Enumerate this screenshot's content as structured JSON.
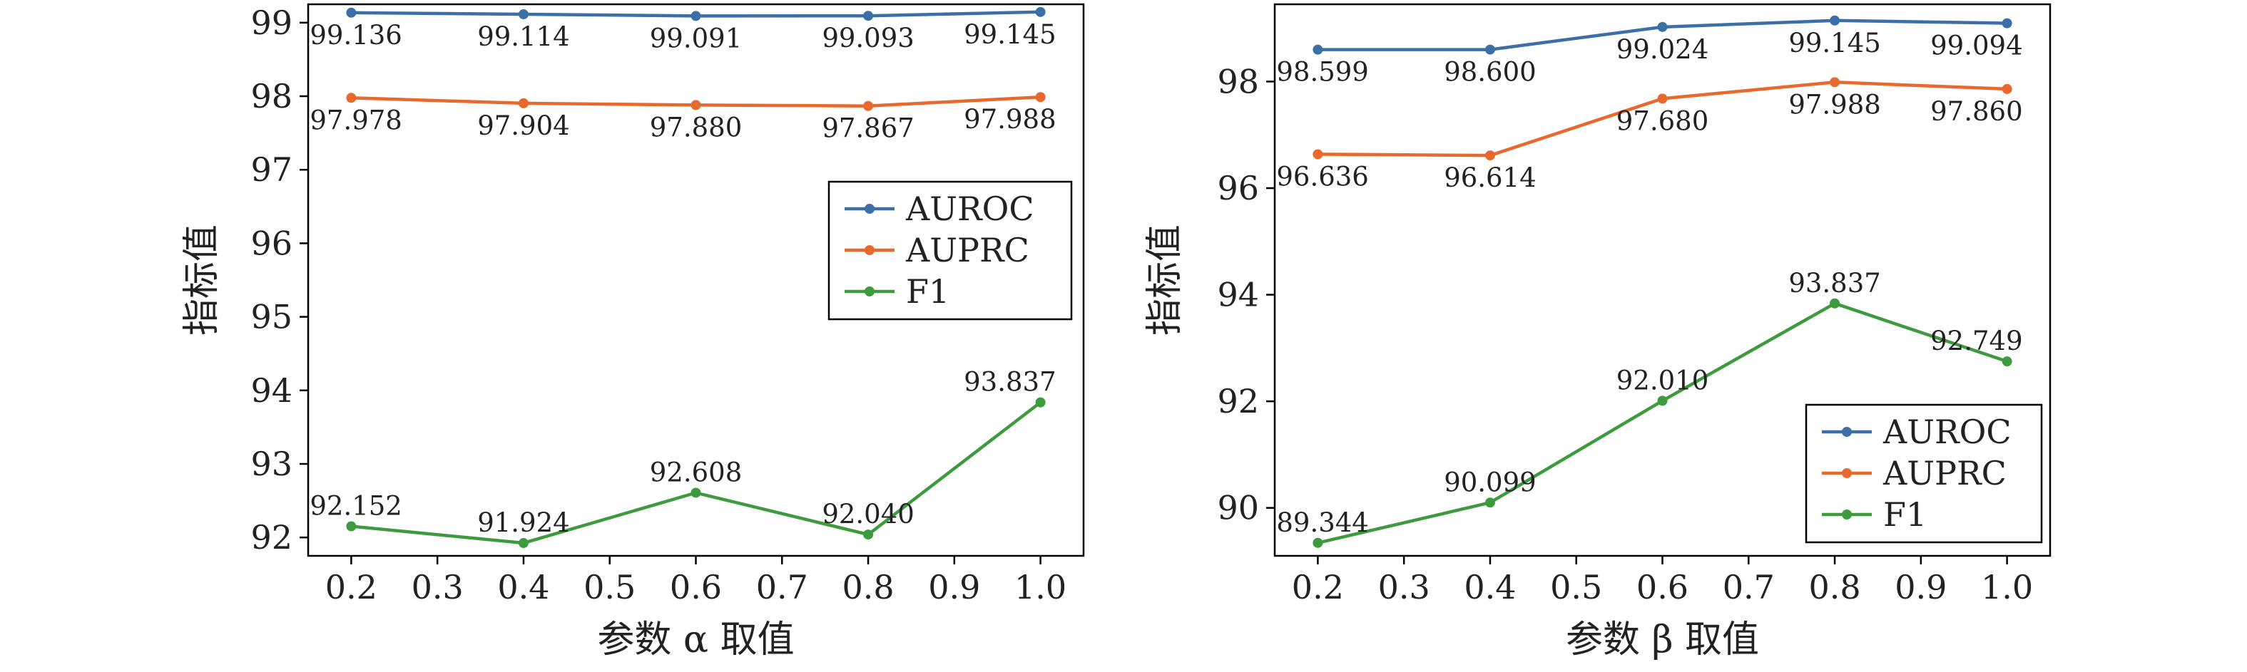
{
  "chart_data": [
    {
      "type": "line",
      "xlabel": "参数 α 取值",
      "ylabel": "指标值",
      "x_ticks": [
        "0.2",
        "0.3",
        "0.4",
        "0.5",
        "0.6",
        "0.7",
        "0.8",
        "0.9",
        "1.0"
      ],
      "y_ticks": [
        "92",
        "93",
        "94",
        "95",
        "96",
        "97",
        "98",
        "99"
      ],
      "xlim": [
        0.15,
        1.05
      ],
      "ylim": [
        91.75,
        99.25
      ],
      "x": [
        0.2,
        0.4,
        0.6,
        0.8,
        1.0
      ],
      "legend_position": "center-right",
      "series": [
        {
          "name": "AUROC",
          "color": "#3b6fa6",
          "values": [
            99.136,
            99.114,
            99.091,
            99.093,
            99.145
          ],
          "labels": [
            "99.136",
            "99.114",
            "99.091",
            "99.093",
            "99.145"
          ],
          "label_side": [
            "below",
            "below",
            "below",
            "below",
            "below"
          ]
        },
        {
          "name": "AUPRC",
          "color": "#e8692e",
          "values": [
            97.978,
            97.904,
            97.88,
            97.867,
            97.988
          ],
          "labels": [
            "97.978",
            "97.904",
            "97.880",
            "97.867",
            "97.988"
          ],
          "label_side": [
            "below",
            "below",
            "below",
            "below",
            "below"
          ]
        },
        {
          "name": "F1",
          "color": "#3d9a3d",
          "values": [
            92.152,
            91.924,
            92.608,
            92.04,
            93.837
          ],
          "labels": [
            "92.152",
            "91.924",
            "92.608",
            "92.040",
            "93.837"
          ],
          "label_side": [
            "above",
            "above",
            "above",
            "above",
            "above"
          ]
        }
      ]
    },
    {
      "type": "line",
      "xlabel": "参数 β 取值",
      "ylabel": "指标值",
      "x_ticks": [
        "0.2",
        "0.3",
        "0.4",
        "0.5",
        "0.6",
        "0.7",
        "0.8",
        "0.9",
        "1.0"
      ],
      "y_ticks": [
        "90",
        "92",
        "94",
        "96",
        "98"
      ],
      "xlim": [
        0.15,
        1.05
      ],
      "ylim": [
        89.1,
        99.45
      ],
      "x": [
        0.2,
        0.4,
        0.6,
        0.8,
        1.0
      ],
      "legend_position": "lower-right",
      "series": [
        {
          "name": "AUROC",
          "color": "#3b6fa6",
          "values": [
            98.599,
            98.6,
            99.024,
            99.145,
            99.094
          ],
          "labels": [
            "98.599",
            "98.600",
            "99.024",
            "99.145",
            "99.094"
          ],
          "label_side": [
            "below",
            "below",
            "below",
            "below",
            "below"
          ]
        },
        {
          "name": "AUPRC",
          "color": "#e8692e",
          "values": [
            96.636,
            96.614,
            97.68,
            97.988,
            97.86
          ],
          "labels": [
            "96.636",
            "96.614",
            "97.680",
            "97.988",
            "97.860"
          ],
          "label_side": [
            "below",
            "below",
            "below",
            "below",
            "below"
          ]
        },
        {
          "name": "F1",
          "color": "#3d9a3d",
          "values": [
            89.344,
            90.099,
            92.01,
            93.837,
            92.749
          ],
          "labels": [
            "89.344",
            "90.099",
            "92.010",
            "93.837",
            "92.749"
          ],
          "label_side": [
            "above",
            "above",
            "above",
            "above",
            "above"
          ]
        }
      ]
    }
  ]
}
